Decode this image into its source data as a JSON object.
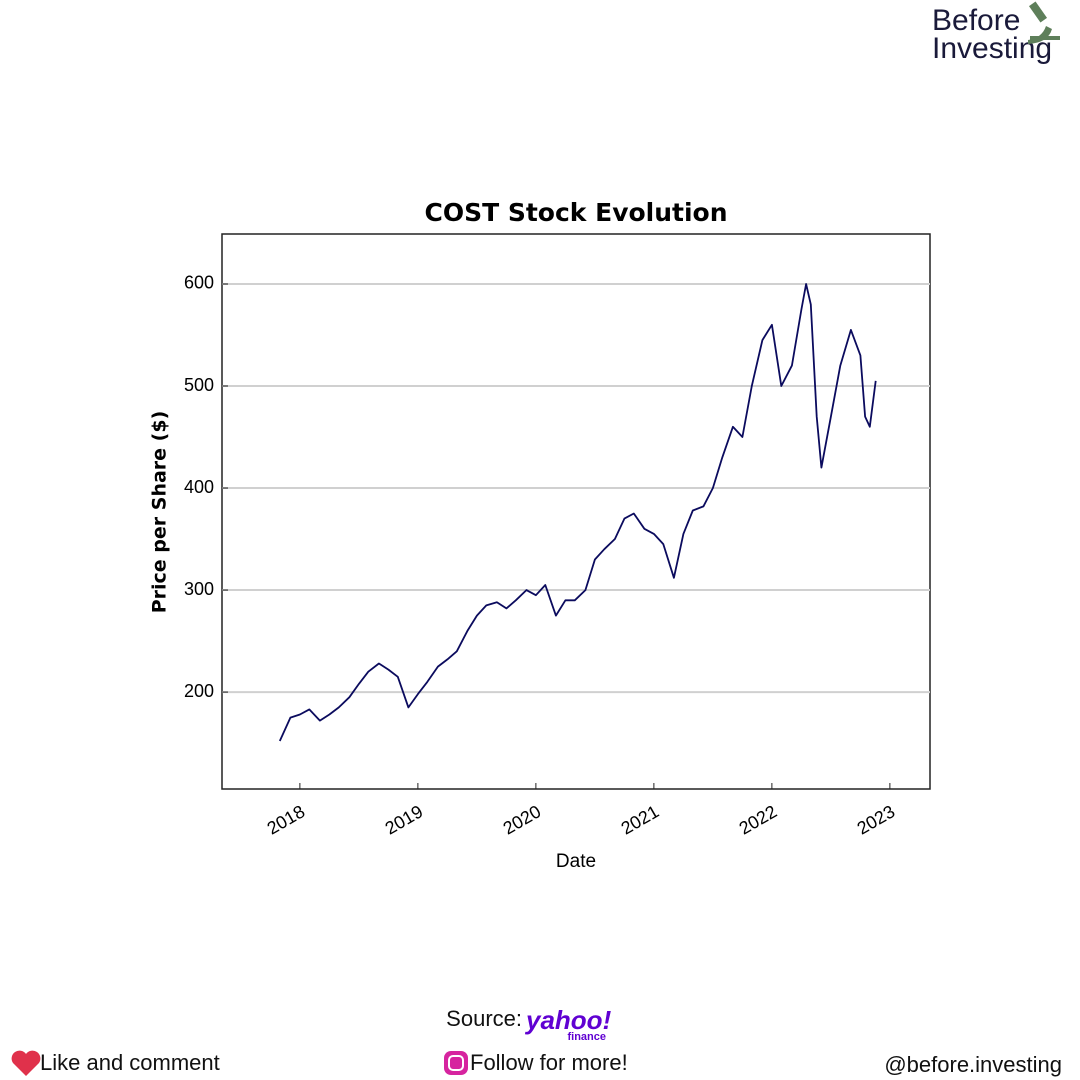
{
  "chart_data": {
    "type": "line",
    "title": "COST Stock Evolution",
    "xlabel": "Date",
    "ylabel": "Price per Share ($)",
    "x": [
      2017.83,
      2017.92,
      2018.0,
      2018.08,
      2018.17,
      2018.25,
      2018.33,
      2018.42,
      2018.5,
      2018.58,
      2018.67,
      2018.75,
      2018.83,
      2018.92,
      2019.0,
      2019.08,
      2019.17,
      2019.25,
      2019.33,
      2019.42,
      2019.5,
      2019.58,
      2019.67,
      2019.75,
      2019.83,
      2019.92,
      2020.0,
      2020.08,
      2020.17,
      2020.25,
      2020.33,
      2020.42,
      2020.5,
      2020.58,
      2020.67,
      2020.75,
      2020.83,
      2020.92,
      2021.0,
      2021.08,
      2021.17,
      2021.25,
      2021.33,
      2021.42,
      2021.5,
      2021.58,
      2021.67,
      2021.75,
      2021.83,
      2021.92,
      2022.0,
      2022.08,
      2022.17,
      2022.25,
      2022.29,
      2022.33,
      2022.38,
      2022.42,
      2022.5,
      2022.58,
      2022.67,
      2022.75,
      2022.79,
      2022.83,
      2022.88
    ],
    "values": [
      152,
      175,
      178,
      183,
      172,
      178,
      185,
      195,
      208,
      220,
      228,
      222,
      215,
      185,
      198,
      210,
      225,
      232,
      240,
      260,
      275,
      285,
      288,
      282,
      290,
      300,
      295,
      305,
      275,
      290,
      290,
      300,
      330,
      340,
      350,
      370,
      375,
      360,
      355,
      345,
      312,
      355,
      378,
      382,
      400,
      430,
      460,
      450,
      500,
      545,
      560,
      500,
      520,
      575,
      600,
      580,
      470,
      420,
      470,
      520,
      555,
      530,
      470,
      460,
      505
    ],
    "color": "#0b0b5e",
    "xlim": [
      2017.34,
      2023.34
    ],
    "xticks": [
      2018,
      2019,
      2020,
      2021,
      2022,
      2023
    ],
    "ylim": [
      105,
      649
    ],
    "yticks": [
      200,
      300,
      400,
      500,
      600
    ],
    "grid": true
  },
  "logo": {
    "line1": "Before",
    "line2": "Investing"
  },
  "footer": {
    "source": "Source:",
    "brand": "yahoo!",
    "brand_sub": "finance",
    "left": "Like and comment",
    "center": "Follow for more!",
    "right": "@before.investing"
  }
}
